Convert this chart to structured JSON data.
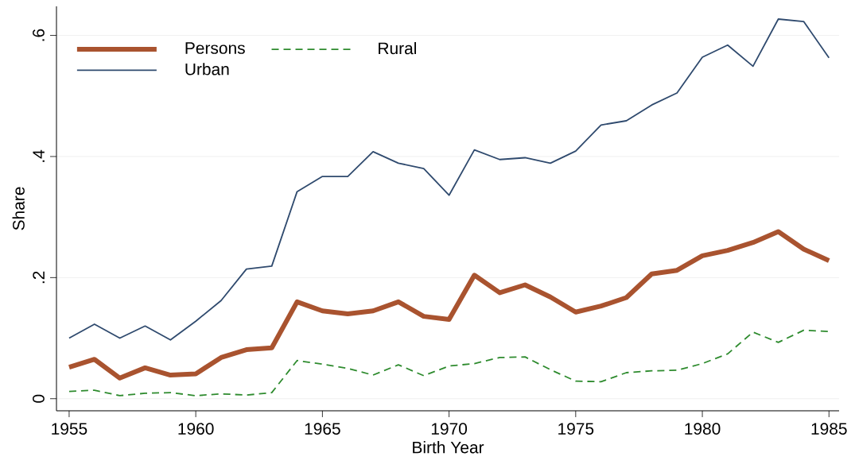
{
  "chart_data": {
    "type": "line",
    "xlabel": "Birth Year",
    "ylabel": "Share",
    "x": [
      1955,
      1956,
      1957,
      1958,
      1959,
      1960,
      1961,
      1962,
      1963,
      1964,
      1965,
      1966,
      1967,
      1968,
      1969,
      1970,
      1971,
      1972,
      1973,
      1974,
      1975,
      1976,
      1977,
      1978,
      1979,
      1980,
      1981,
      1982,
      1983,
      1984,
      1985
    ],
    "series": [
      {
        "name": "Persons",
        "color": "#a9532f",
        "line_style": "solid",
        "values": [
          0.052,
          0.065,
          0.034,
          0.051,
          0.039,
          0.041,
          0.068,
          0.081,
          0.084,
          0.16,
          0.145,
          0.14,
          0.145,
          0.16,
          0.136,
          0.131,
          0.204,
          0.175,
          0.188,
          0.168,
          0.143,
          0.153,
          0.167,
          0.206,
          0.212,
          0.236,
          0.245,
          0.258,
          0.276,
          0.247,
          0.228
        ]
      },
      {
        "name": "Urban",
        "color": "#2f4a6e",
        "line_style": "solid",
        "values": [
          0.1,
          0.123,
          0.1,
          0.12,
          0.097,
          0.128,
          0.162,
          0.214,
          0.219,
          0.342,
          0.367,
          0.367,
          0.408,
          0.389,
          0.38,
          0.336,
          0.411,
          0.395,
          0.398,
          0.389,
          0.409,
          0.452,
          0.459,
          0.485,
          0.505,
          0.564,
          0.584,
          0.549,
          0.627,
          0.623,
          0.563
        ]
      },
      {
        "name": "Rural",
        "color": "#2e8b2e",
        "line_style": "dashed",
        "values": [
          0.012,
          0.014,
          0.005,
          0.009,
          0.01,
          0.005,
          0.008,
          0.006,
          0.01,
          0.063,
          0.057,
          0.05,
          0.039,
          0.056,
          0.038,
          0.054,
          0.058,
          0.068,
          0.069,
          0.048,
          0.029,
          0.028,
          0.043,
          0.046,
          0.047,
          0.058,
          0.074,
          0.11,
          0.093,
          0.113,
          0.111
        ]
      }
    ],
    "xlim": [
      1954.5,
      1985.4
    ],
    "ylim": [
      -0.02,
      0.648
    ],
    "xticks": [
      1955,
      1960,
      1965,
      1970,
      1975,
      1980,
      1985
    ],
    "yticks": [
      {
        "value": 0,
        "label": "0"
      },
      {
        "value": 0.2,
        "label": ".2"
      },
      {
        "value": 0.4,
        "label": ".4"
      },
      {
        "value": 0.6,
        "label": ".6"
      }
    ],
    "grid": "y",
    "legend": "top left"
  }
}
